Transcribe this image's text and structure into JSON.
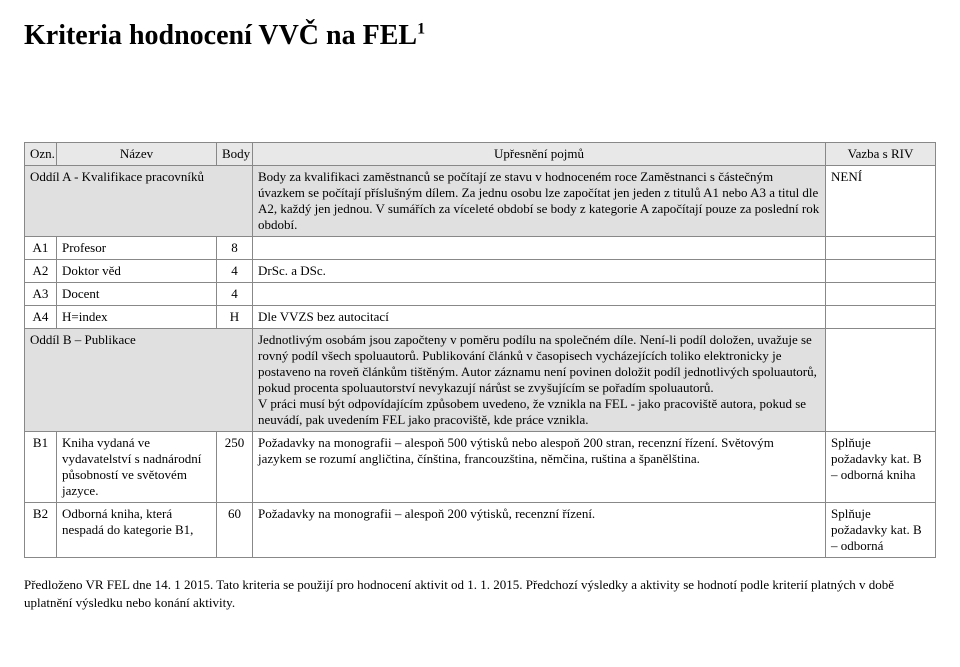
{
  "title": "Kriteria hodnocení VVČ na FEL",
  "title_sup": "1",
  "headers": {
    "ozn": "Ozn.",
    "nazev": "Název",
    "body": "Body",
    "upresneni": "Upřesnění pojmů",
    "vazba": "Vazba s RIV"
  },
  "rows": {
    "oddilA": {
      "name": "Oddíl A - Kvalifikace pracovníků",
      "desc": "Body za kvalifikaci zaměstnanců se počítají ze stavu v hodnoceném roce Zaměstnanci s částečným úvazkem se počítají příslušným dílem. Za jednu osobu lze započítat jen jeden z titulů A1 nebo A3 a titul dle A2, každý jen jednou. V sumářích za víceleté období se body z kategorie A započítají pouze za poslední rok období.",
      "riv": "NENÍ"
    },
    "a1": {
      "ozn": "A1",
      "name": "Profesor",
      "body": "8",
      "desc": "",
      "riv": ""
    },
    "a2": {
      "ozn": "A2",
      "name": "Doktor věd",
      "body": "4",
      "desc": " DrSc. a DSc.",
      "riv": ""
    },
    "a3": {
      "ozn": "A3",
      "name": "Docent",
      "body": "4",
      "desc": "",
      "riv": ""
    },
    "a4": {
      "ozn": "A4",
      "name": "H=index",
      "body": "H",
      "desc": "Dle VVZS bez autocitací",
      "riv": ""
    },
    "oddilB": {
      "name": "Oddíl B – Publikace",
      "desc": "Jednotlivým osobám jsou započteny v poměru podílu na společném díle. Není-li podíl doložen, uvažuje se rovný podíl všech spoluautorů. Publikování článků v časopisech vycházejících toliko elektronicky je postaveno na roveň článkům tištěným. Autor záznamu není povinen doložit podíl jednotlivých spoluautorů, pokud procenta spoluautorství nevykazují nárůst se zvyšujícím se pořadím spoluautorů.\nV práci musí být odpovídajícím způsobem uvedeno, že vznikla na FEL - jako pracoviště autora, pokud se neuvádí, pak uvedením FEL jako pracoviště, kde práce vznikla."
    },
    "b1": {
      "ozn": "B1",
      "name": "Kniha vydaná ve vydavatelství s nadnárodní působností ve světovém jazyce.",
      "body": "250",
      "desc": "Požadavky na monografii – alespoň 500 výtisků nebo alespoň 200 stran, recenzní řízení. Světovým jazykem se rozumí angličtina, čínština, francouzština, němčina, ruština a španělština.",
      "riv": "Splňuje požadavky kat. B – odborná kniha"
    },
    "b2": {
      "ozn": "B2",
      "name": "Odborná kniha, která nespadá do kategorie B1,",
      "body": "60",
      "desc": "Požadavky na monografii – alespoň 200 výtisků, recenzní řízení.",
      "riv": "Splňuje požadavky kat. B – odborná"
    }
  },
  "footer": "Předloženo VR FEL dne 14. 1 2015. Tato kriteria se použijí pro hodnocení aktivit od 1. 1. 2015. Předchozí výsledky a aktivity se hodnotí podle kriterií platných v době uplatnění výsledku nebo konání aktivity."
}
